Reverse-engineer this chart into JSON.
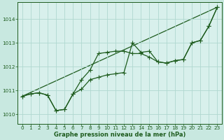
{
  "background_color": "#c8e8e0",
  "plot_bg_color": "#d8f0ec",
  "grid_color": "#b0d8d0",
  "line_color": "#1e5c1e",
  "xlabel": "Graphe pression niveau de la mer (hPa)",
  "xlim": [
    -0.5,
    23.5
  ],
  "ylim": [
    1009.6,
    1014.7
  ],
  "yticks": [
    1010,
    1011,
    1012,
    1013,
    1014
  ],
  "xticks": [
    0,
    1,
    2,
    3,
    4,
    5,
    6,
    7,
    8,
    9,
    10,
    11,
    12,
    13,
    14,
    15,
    16,
    17,
    18,
    19,
    20,
    21,
    22,
    23
  ],
  "series1_x": [
    0,
    1,
    2,
    3,
    4,
    5,
    6,
    7,
    8,
    9,
    10,
    11,
    12,
    13,
    14,
    15,
    16,
    17,
    18,
    19,
    20,
    21,
    22,
    23
  ],
  "series1_y": [
    1010.75,
    1010.85,
    1010.9,
    1010.8,
    1010.15,
    1010.2,
    1010.85,
    1011.45,
    1011.85,
    1012.55,
    1012.6,
    1012.65,
    1012.65,
    1012.55,
    1012.55,
    1012.4,
    1012.2,
    1012.15,
    1012.25,
    1012.3,
    1013.0,
    1013.1,
    1013.7,
    1014.5
  ],
  "series2_x": [
    0,
    1,
    2,
    3,
    4,
    5,
    6,
    7,
    8,
    9,
    10,
    11,
    12,
    13,
    14,
    15,
    16,
    17,
    18,
    19,
    20,
    21,
    22,
    23
  ],
  "series2_y": [
    1010.75,
    1010.85,
    1010.9,
    1010.8,
    1010.15,
    1010.2,
    1010.85,
    1011.05,
    1011.45,
    1011.55,
    1011.65,
    1011.7,
    1011.75,
    1013.0,
    1012.6,
    1012.65,
    1012.2,
    1012.15,
    1012.25,
    1012.3,
    1013.0,
    1013.1,
    1013.7,
    1014.5
  ],
  "series3_x": [
    0,
    23
  ],
  "series3_y": [
    1010.75,
    1014.5
  ],
  "marker_size": 2.5,
  "line_width": 0.9,
  "tick_fontsize": 5.2,
  "xlabel_fontsize": 6.0
}
